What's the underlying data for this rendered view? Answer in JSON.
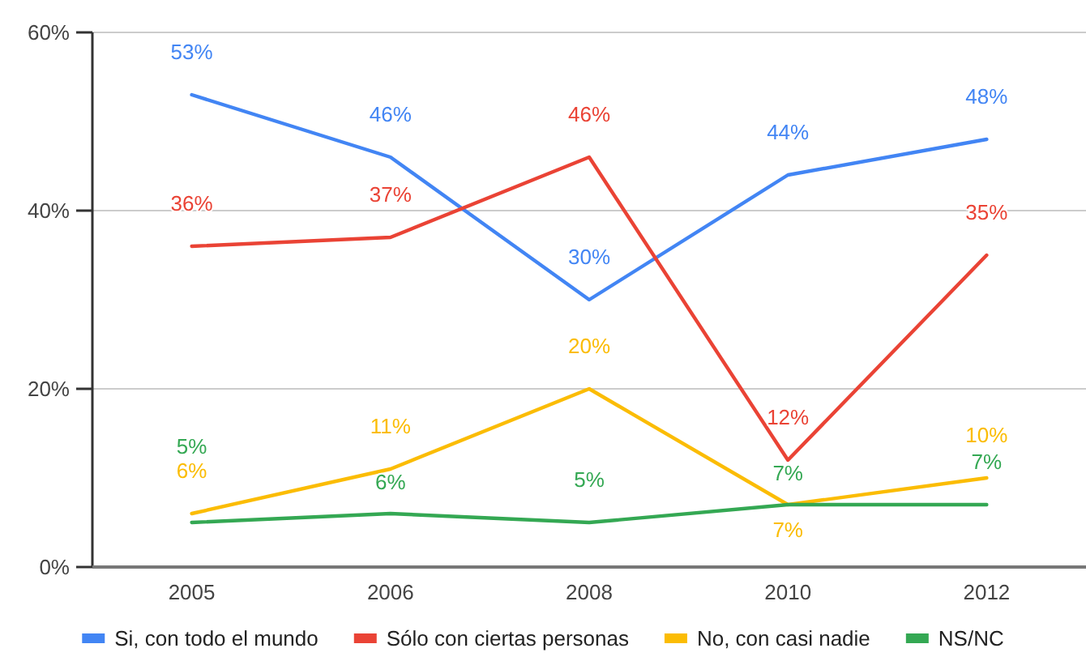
{
  "chart_data": {
    "type": "line",
    "categories": [
      "2005",
      "2006",
      "2008",
      "2010",
      "2012"
    ],
    "series": [
      {
        "name": "Si, con todo el mundo",
        "color": "#4285f4",
        "values": [
          53,
          46,
          30,
          44,
          48
        ],
        "value_labels": [
          "53%",
          "46%",
          "30%",
          "44%",
          "48%"
        ]
      },
      {
        "name": "Sólo con ciertas personas",
        "color": "#ea4335",
        "values": [
          36,
          37,
          46,
          12,
          35
        ],
        "value_labels": [
          "36%",
          "37%",
          "46%",
          "12%",
          "35%"
        ]
      },
      {
        "name": "No, con casi nadie",
        "color": "#fbbc04",
        "values": [
          6,
          11,
          20,
          7,
          10
        ],
        "value_labels": [
          "6%",
          "11%",
          "20%",
          "7%",
          "10%"
        ]
      },
      {
        "name": "NS/NC",
        "color": "#34a853",
        "values": [
          5,
          6,
          5,
          7,
          7
        ],
        "value_labels": [
          "5%",
          "6%",
          "5%",
          "7%",
          "7%"
        ]
      }
    ],
    "ylim": [
      0,
      60
    ],
    "yticks": [
      {
        "value": 0,
        "label": "0%"
      },
      {
        "value": 20,
        "label": "20%"
      },
      {
        "value": 40,
        "label": "40%"
      },
      {
        "value": 60,
        "label": "60%"
      }
    ],
    "grid": true,
    "legend": "bottom"
  }
}
